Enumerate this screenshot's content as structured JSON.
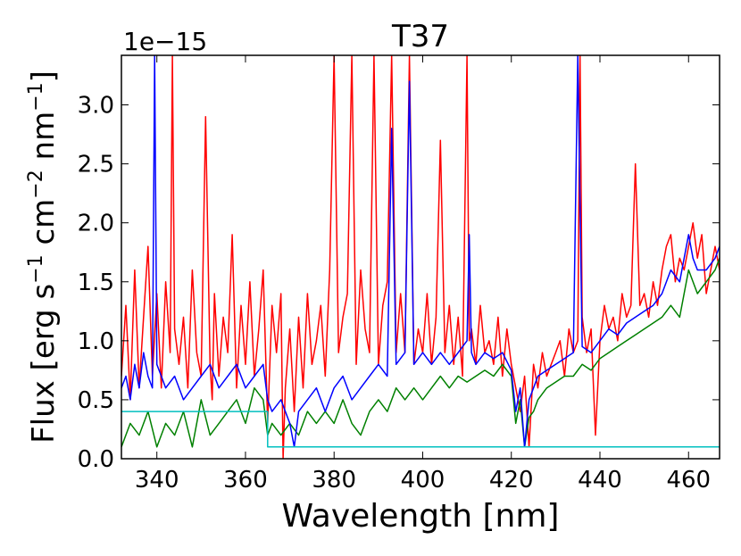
{
  "chart_data": {
    "type": "line",
    "title": "T37",
    "xlabel": "Wavelength [nm]",
    "ylabel_parts": [
      "Flux [erg s",
      "−1",
      " cm",
      "−2",
      " nm",
      "−1",
      "]"
    ],
    "offset_label": "1e−15",
    "xlim": [
      332,
      467
    ],
    "ylim": [
      0,
      3.42
    ],
    "x_ticks": [
      340,
      360,
      380,
      400,
      420,
      440,
      460
    ],
    "x_tick_labels": [
      "340",
      "360",
      "380",
      "400",
      "420",
      "440",
      "460"
    ],
    "y_ticks": [
      0.0,
      0.5,
      1.0,
      1.5,
      2.0,
      2.5,
      3.0
    ],
    "y_tick_labels": [
      "0.0",
      "0.5",
      "1.0",
      "1.5",
      "2.0",
      "2.5",
      "3.0"
    ],
    "grid": false,
    "series": [
      {
        "name": "red",
        "color": "#ff0000",
        "x": [
          332,
          333,
          334,
          335,
          336,
          337,
          338,
          339,
          340,
          341,
          342,
          343,
          343.5,
          344,
          345,
          346,
          347,
          348,
          349,
          350,
          351,
          352,
          352.5,
          353,
          354,
          355,
          356,
          357,
          358,
          359,
          360,
          361,
          362,
          363,
          364,
          365,
          366,
          367,
          368,
          368.5,
          369,
          370,
          371,
          372,
          373,
          374,
          375,
          376,
          377,
          378,
          379,
          380,
          381,
          382,
          383,
          384,
          385,
          386,
          387,
          388,
          389,
          390,
          391,
          392,
          393,
          394,
          395,
          396,
          397,
          398,
          399,
          400,
          401,
          402,
          403,
          404,
          405,
          406,
          407,
          408,
          409,
          410,
          410.5,
          411,
          412,
          413,
          414,
          415,
          416,
          417,
          418,
          419,
          420,
          421,
          422,
          423,
          424,
          425,
          426,
          427,
          428,
          429,
          430,
          431,
          432,
          433,
          434,
          435,
          435.5,
          436,
          437,
          438,
          439,
          440,
          441,
          442,
          443,
          444,
          445,
          446,
          447,
          448,
          449,
          450,
          451,
          452,
          453,
          454,
          455,
          456,
          457,
          458,
          459,
          460,
          461,
          462,
          463,
          464,
          465,
          466,
          467
        ],
        "y": [
          0.7,
          1.3,
          0.5,
          1.6,
          0.6,
          1.2,
          1.8,
          0.7,
          1.4,
          0.6,
          1.5,
          0.9,
          3.42,
          1.1,
          0.8,
          1.2,
          0.6,
          1.6,
          0.9,
          0.7,
          2.9,
          0.8,
          0.5,
          1.4,
          0.7,
          1.2,
          0.9,
          1.9,
          0.6,
          1.3,
          0.8,
          1.5,
          0.7,
          1.1,
          1.6,
          0.3,
          1.3,
          0.9,
          1.4,
          0.0,
          0.6,
          1.1,
          0.4,
          1.2,
          0.6,
          1.4,
          0.8,
          1.0,
          1.3,
          0.7,
          1.6,
          3.42,
          0.9,
          1.2,
          1.4,
          3.42,
          0.8,
          1.6,
          1.1,
          0.9,
          3.42,
          0.8,
          1.3,
          1.5,
          3.42,
          0.9,
          1.4,
          0.9,
          3.42,
          0.8,
          1.1,
          0.9,
          1.4,
          0.8,
          1.2,
          2.7,
          0.9,
          1.3,
          0.8,
          1.2,
          0.7,
          3.42,
          1.0,
          1.1,
          0.8,
          1.3,
          0.9,
          1.0,
          0.8,
          1.2,
          0.7,
          1.1,
          0.8,
          0.6,
          0.4,
          0.7,
          0.1,
          0.8,
          0.6,
          0.9,
          0.7,
          0.8,
          0.9,
          1.0,
          0.7,
          1.1,
          0.9,
          1.0,
          3.42,
          1.2,
          0.9,
          1.1,
          0.2,
          1.0,
          1.3,
          1.1,
          1.2,
          1.0,
          1.4,
          1.2,
          1.3,
          2.5,
          1.3,
          1.4,
          1.2,
          1.5,
          1.3,
          1.6,
          1.8,
          1.9,
          1.5,
          1.7,
          1.6,
          1.8,
          2.0,
          1.7,
          1.9,
          1.4,
          1.6,
          1.8,
          1.6
        ]
      },
      {
        "name": "green",
        "color": "#008000",
        "x": [
          332,
          334,
          336,
          338,
          340,
          342,
          344,
          346,
          348,
          350,
          352,
          354,
          356,
          358,
          360,
          362,
          364,
          365,
          366,
          368,
          370,
          372,
          374,
          376,
          378,
          380,
          382,
          384,
          386,
          388,
          390,
          392,
          394,
          396,
          398,
          400,
          402,
          404,
          406,
          408,
          410,
          412,
          414,
          416,
          418,
          420,
          421,
          422,
          423,
          424,
          425,
          426,
          428,
          430,
          432,
          434,
          436,
          438,
          440,
          442,
          444,
          446,
          448,
          450,
          452,
          454,
          456,
          458,
          460,
          462,
          464,
          466,
          467
        ],
        "y": [
          0.1,
          0.3,
          0.2,
          0.4,
          0.1,
          0.3,
          0.2,
          0.4,
          0.1,
          0.5,
          0.2,
          0.3,
          0.4,
          0.5,
          0.3,
          0.6,
          0.5,
          0.2,
          0.3,
          0.2,
          0.3,
          0.2,
          0.4,
          0.3,
          0.4,
          0.3,
          0.5,
          0.3,
          0.2,
          0.4,
          0.5,
          0.4,
          0.6,
          0.5,
          0.6,
          0.5,
          0.6,
          0.7,
          0.6,
          0.7,
          0.65,
          0.7,
          0.75,
          0.7,
          0.8,
          0.7,
          0.3,
          0.5,
          0.1,
          0.35,
          0.4,
          0.5,
          0.6,
          0.65,
          0.7,
          0.7,
          0.8,
          0.75,
          0.85,
          0.9,
          0.95,
          1.0,
          1.05,
          1.1,
          1.15,
          1.2,
          1.3,
          1.2,
          1.6,
          1.4,
          1.5,
          1.6,
          1.7
        ]
      },
      {
        "name": "blue",
        "color": "#0000ff",
        "x": [
          332,
          333,
          334,
          335,
          336,
          337,
          338,
          339,
          339.5,
          340,
          341,
          342,
          344,
          346,
          348,
          350,
          352,
          354,
          356,
          358,
          360,
          362,
          364,
          365,
          366,
          368,
          370,
          371,
          372,
          374,
          376,
          378,
          380,
          382,
          384,
          386,
          388,
          390,
          392,
          393,
          394,
          396,
          397,
          398,
          400,
          402,
          404,
          406,
          408,
          410,
          410.5,
          411,
          412,
          414,
          416,
          418,
          420,
          421,
          422,
          423,
          424,
          425,
          426,
          428,
          430,
          432,
          434,
          435,
          436,
          438,
          440,
          442,
          444,
          446,
          448,
          450,
          452,
          454,
          456,
          458,
          460,
          461,
          462,
          464,
          466,
          467
        ],
        "y": [
          0.6,
          0.7,
          0.5,
          0.8,
          0.6,
          0.9,
          0.7,
          0.6,
          3.42,
          0.8,
          0.7,
          0.6,
          0.7,
          0.5,
          0.6,
          0.7,
          0.8,
          0.6,
          0.7,
          0.8,
          0.6,
          0.7,
          0.8,
          0.5,
          0.4,
          0.5,
          0.3,
          0.1,
          0.4,
          0.5,
          0.6,
          0.4,
          0.6,
          0.7,
          0.5,
          0.6,
          0.7,
          0.8,
          0.7,
          2.8,
          0.8,
          0.9,
          3.2,
          0.8,
          0.9,
          0.8,
          0.9,
          0.8,
          0.9,
          1.0,
          1.9,
          0.9,
          0.8,
          0.9,
          0.85,
          0.9,
          0.75,
          0.4,
          0.6,
          0.1,
          0.5,
          0.6,
          0.7,
          0.75,
          0.8,
          0.85,
          0.9,
          3.42,
          0.95,
          0.9,
          1.0,
          1.1,
          1.05,
          1.15,
          1.2,
          1.25,
          1.3,
          1.4,
          1.6,
          1.5,
          1.9,
          1.7,
          1.6,
          1.6,
          1.7,
          1.8
        ]
      },
      {
        "name": "cyan",
        "color": "#00bfbf",
        "x": [
          332,
          365,
          365,
          467
        ],
        "y": [
          0.4,
          0.4,
          0.1,
          0.1
        ]
      }
    ]
  }
}
